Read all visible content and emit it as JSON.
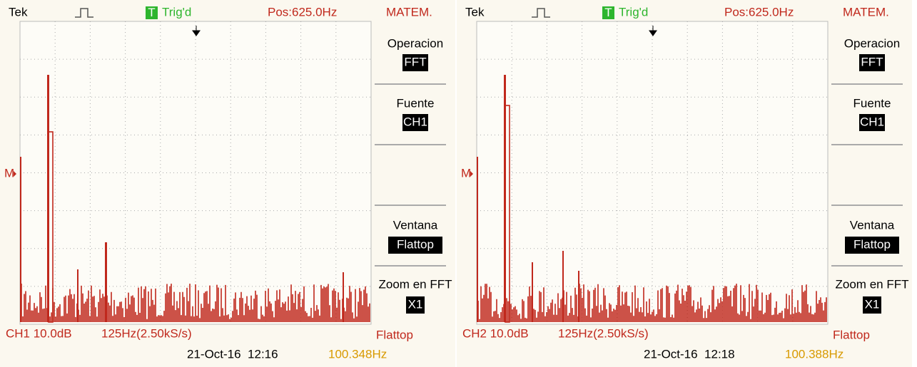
{
  "panels": [
    {
      "header": {
        "brand": "Tek",
        "trig_icon": "T",
        "trig": "Trig'd",
        "pos": "Pos:625.0Hz",
        "menu": "MATEM."
      },
      "menu": [
        {
          "label": "Operacion",
          "value": "FFT"
        },
        {
          "label": "Fuente",
          "value": "CH1"
        },
        {
          "label": "Ventana",
          "value": "Flattop"
        },
        {
          "label": "Zoom en FFT",
          "value": "X1"
        }
      ],
      "marker": "M",
      "footer": {
        "channel": "CH1 10.0dB",
        "timebase": "125Hz(2.50kS/s)",
        "window": "Flattop",
        "date": "21-Oct-16  12:16",
        "freq": "100.348Hz"
      }
    },
    {
      "header": {
        "brand": "Tek",
        "trig_icon": "T",
        "trig": "Trig'd",
        "pos": "Pos:625.0Hz",
        "menu": "MATEM."
      },
      "menu": [
        {
          "label": "Operacion",
          "value": "FFT"
        },
        {
          "label": "Fuente",
          "value": "CH1"
        },
        {
          "label": "Ventana",
          "value": "Flattop"
        },
        {
          "label": "Zoom en FFT",
          "value": "X1"
        }
      ],
      "marker": "M",
      "footer": {
        "channel": "CH2 10.0dB",
        "timebase": "125Hz(2.50kS/s)",
        "window": "Flattop",
        "date": "21-Oct-16  12:18",
        "freq": "100.388Hz"
      }
    }
  ]
}
